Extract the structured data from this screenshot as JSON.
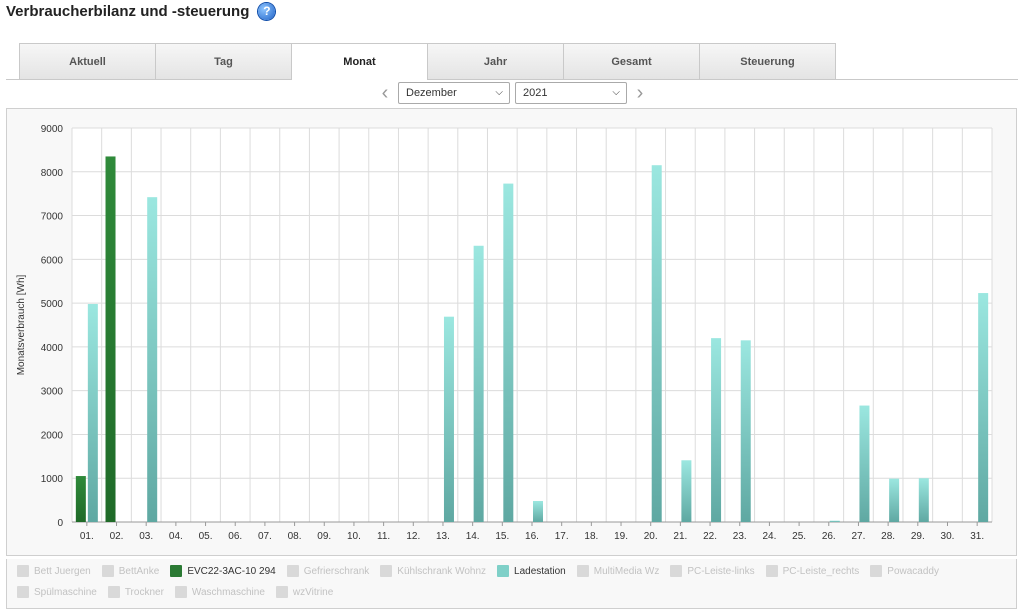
{
  "header": {
    "title": "Verbraucherbilanz und -steuerung",
    "help_icon": "?"
  },
  "tabs": [
    {
      "label": "Aktuell",
      "active": false
    },
    {
      "label": "Tag",
      "active": false
    },
    {
      "label": "Monat",
      "active": true
    },
    {
      "label": "Jahr",
      "active": false
    },
    {
      "label": "Gesamt",
      "active": false
    },
    {
      "label": "Steuerung",
      "active": false
    }
  ],
  "period": {
    "month": "Dezember",
    "year": "2021",
    "prev_icon": "‹",
    "next_icon": "›"
  },
  "colors": {
    "evc": "#2b7a34",
    "ladestation": "#7fd0c8",
    "inactive": "#d9d9d9",
    "grid": "#dcdcdc"
  },
  "chart_data": {
    "type": "bar",
    "ylabel": "Monatsverbrauch [Wh]",
    "ylim": [
      0,
      9000
    ],
    "yticks": [
      0,
      1000,
      2000,
      3000,
      4000,
      5000,
      6000,
      7000,
      8000,
      9000
    ],
    "grid": true,
    "categories": [
      "01.",
      "02.",
      "03.",
      "04.",
      "05.",
      "06.",
      "07.",
      "08.",
      "09.",
      "10.",
      "11.",
      "12.",
      "13.",
      "14.",
      "15.",
      "16.",
      "17.",
      "18.",
      "19.",
      "20.",
      "21.",
      "22.",
      "23.",
      "24.",
      "25.",
      "26.",
      "27.",
      "28.",
      "29.",
      "30.",
      "31."
    ],
    "series": [
      {
        "name": "EVC22-3AC-10 294",
        "color": "#2b7a34",
        "values": [
          1050,
          8350,
          0,
          0,
          0,
          0,
          0,
          0,
          0,
          0,
          0,
          0,
          0,
          0,
          0,
          0,
          0,
          0,
          0,
          0,
          0,
          0,
          0,
          0,
          0,
          0,
          0,
          0,
          0,
          0,
          0
        ]
      },
      {
        "name": "Ladestation",
        "color": "#7fd0c8",
        "values": [
          4980,
          0,
          7420,
          0,
          0,
          0,
          0,
          0,
          0,
          0,
          0,
          0,
          4690,
          6310,
          7730,
          480,
          0,
          0,
          0,
          8150,
          1410,
          4200,
          4150,
          0,
          0,
          30,
          2660,
          990,
          1000,
          0,
          5230
        ]
      }
    ]
  },
  "legend": {
    "row1": [
      {
        "label": "Bett Juergen",
        "active": false
      },
      {
        "label": "BettAnke",
        "active": false
      },
      {
        "label": "EVC22-3AC-10 294",
        "active": true,
        "color": "#2b7a34"
      },
      {
        "label": "Gefrierschrank",
        "active": false
      },
      {
        "label": "Kühlschrank Wohnz",
        "active": false
      },
      {
        "label": "Ladestation",
        "active": true,
        "color": "#7fd0c8"
      },
      {
        "label": "MultiMedia Wz",
        "active": false
      },
      {
        "label": "PC-Leiste-links",
        "active": false
      },
      {
        "label": "PC-Leiste_rechts",
        "active": false
      },
      {
        "label": "Powacaddy",
        "active": false
      }
    ],
    "row2": [
      {
        "label": "Spülmaschine",
        "active": false
      },
      {
        "label": "Trockner",
        "active": false
      },
      {
        "label": "Waschmaschine",
        "active": false
      },
      {
        "label": "wzVitrine",
        "active": false
      }
    ]
  }
}
